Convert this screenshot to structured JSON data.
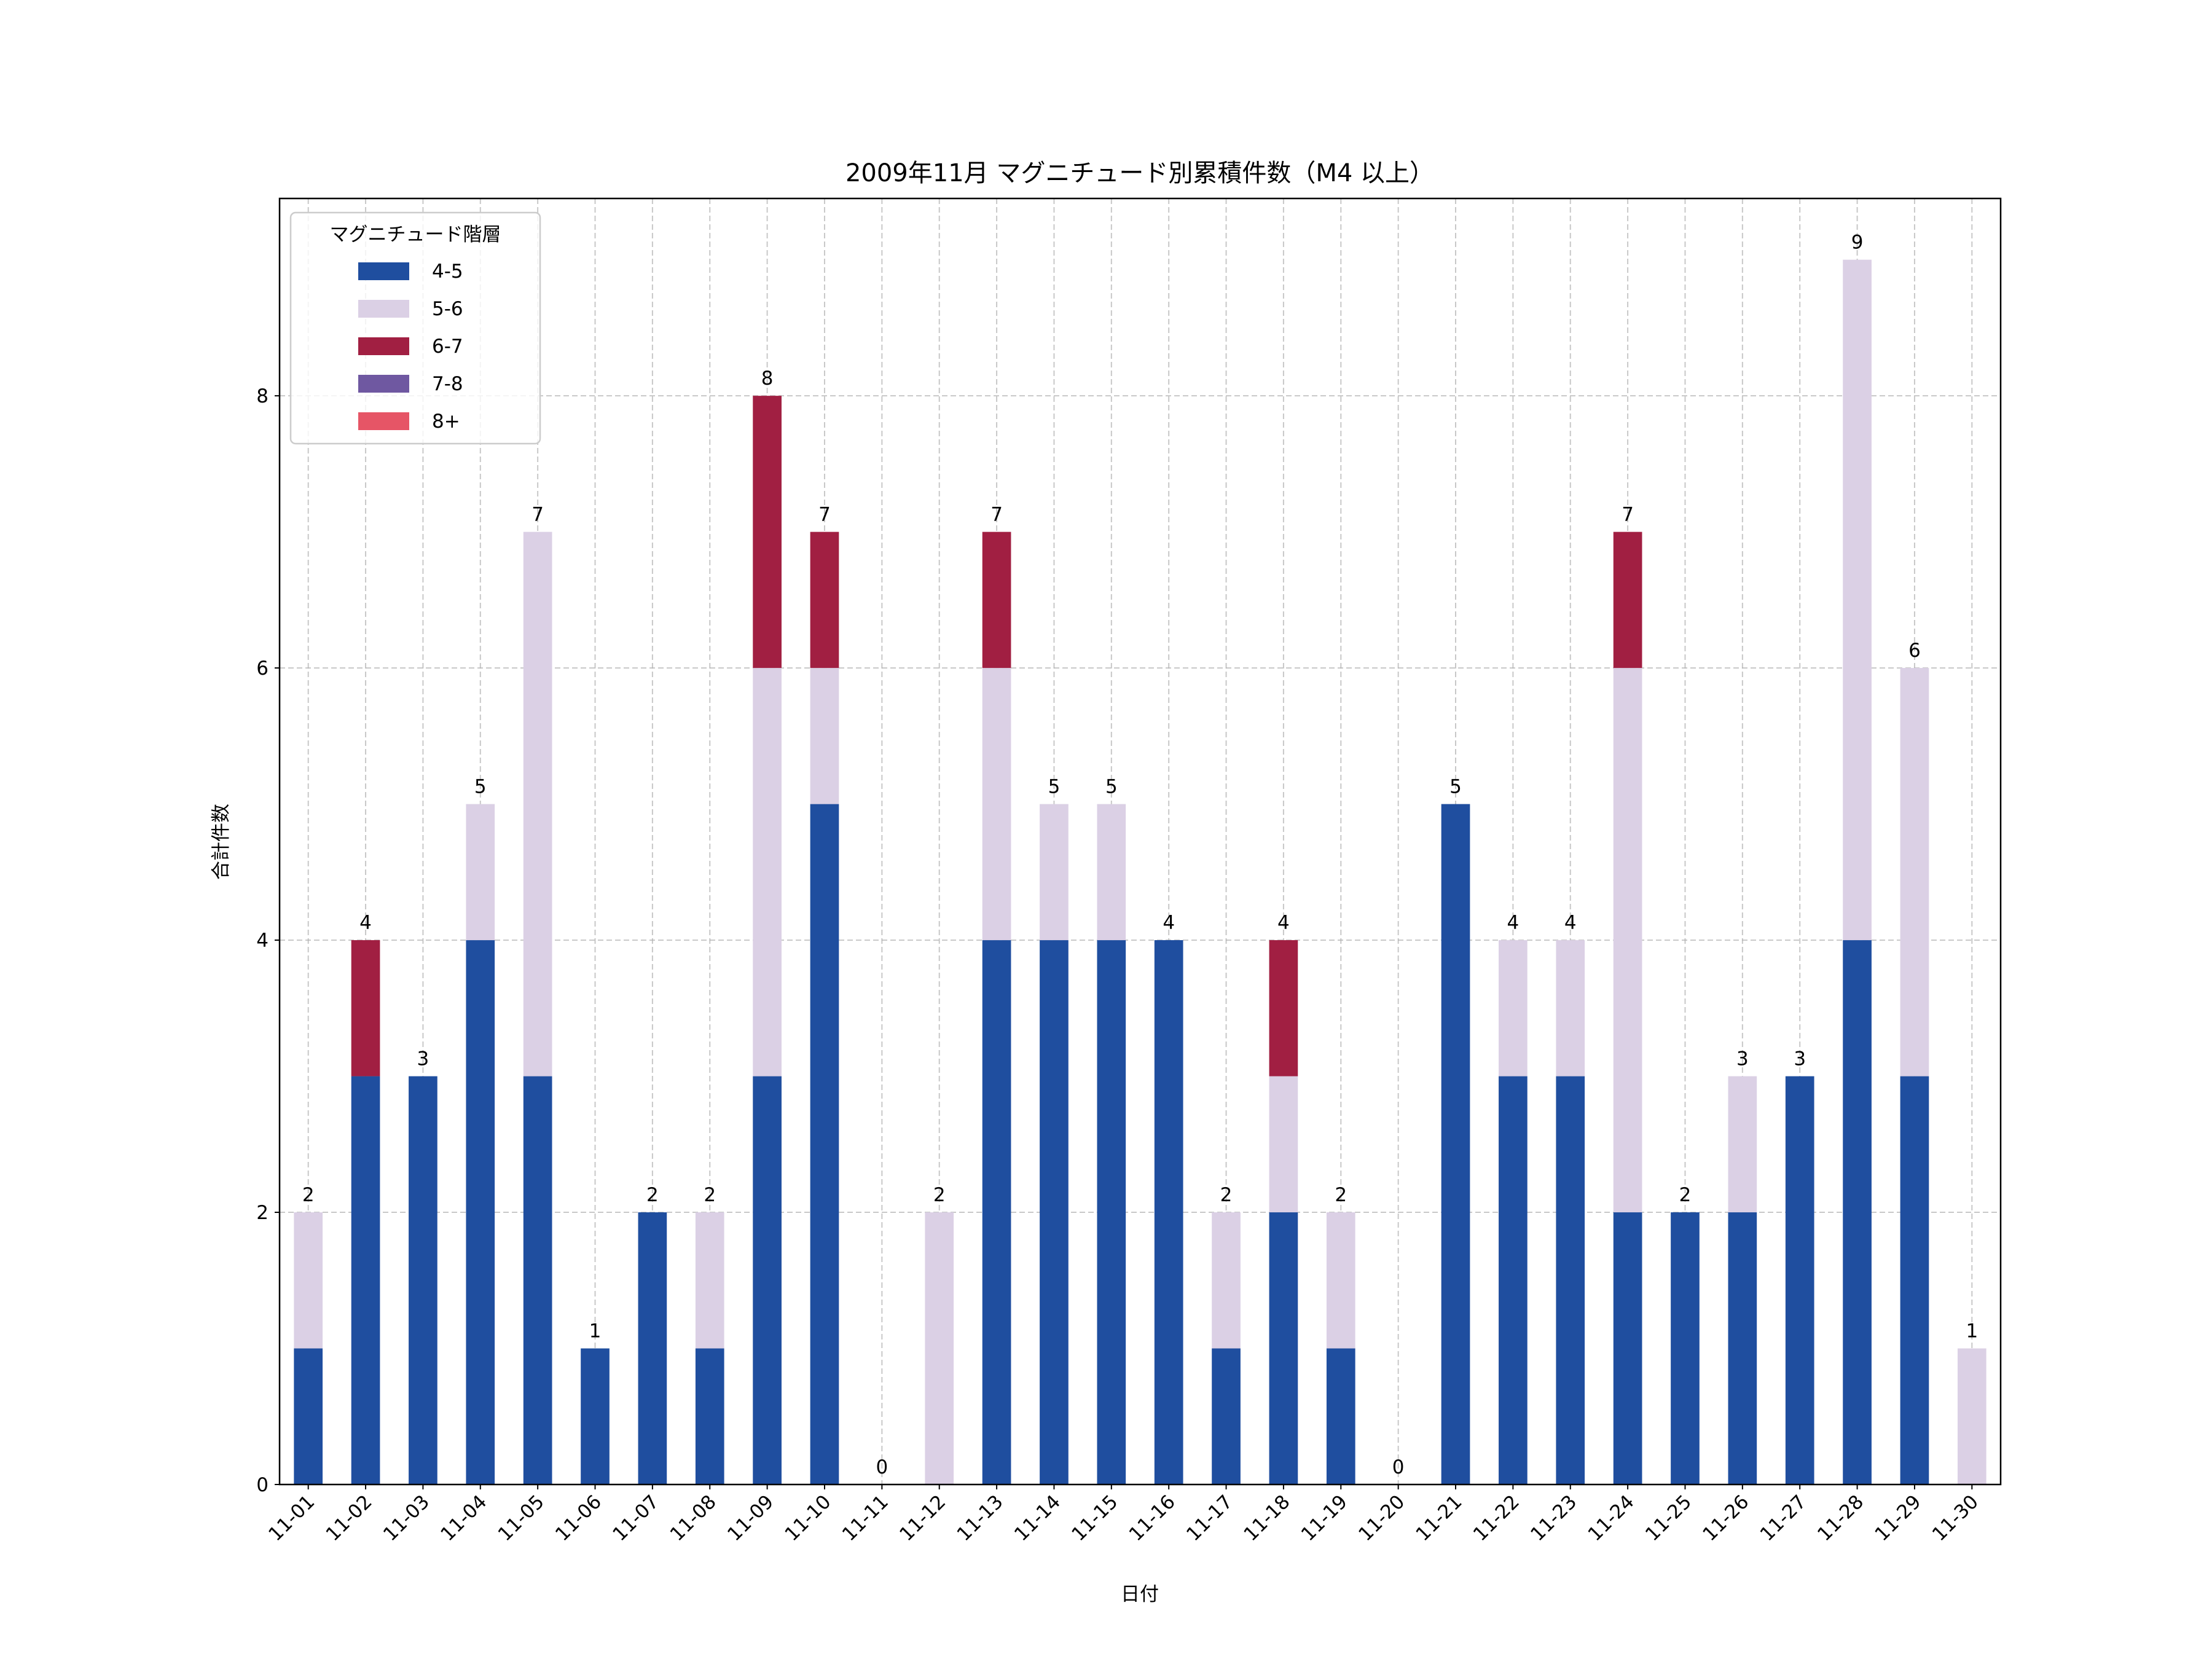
{
  "chart_data": {
    "type": "bar",
    "stacked": true,
    "title": "2009年11月 マグニチュード別累積件数（M4 以上）",
    "xlabel": "日付",
    "ylabel": "合計件数",
    "ylim": [
      0,
      9.45
    ],
    "yticks": [
      0,
      2,
      4,
      6,
      8
    ],
    "grid": true,
    "legend": {
      "title": "マグニチュード階層",
      "placement": "top-left"
    },
    "categories": [
      "11-01",
      "11-02",
      "11-03",
      "11-04",
      "11-05",
      "11-06",
      "11-07",
      "11-08",
      "11-09",
      "11-10",
      "11-11",
      "11-12",
      "11-13",
      "11-14",
      "11-15",
      "11-16",
      "11-17",
      "11-18",
      "11-19",
      "11-20",
      "11-21",
      "11-22",
      "11-23",
      "11-24",
      "11-25",
      "11-26",
      "11-27",
      "11-28",
      "11-29",
      "11-30"
    ],
    "series": [
      {
        "name": "4-5",
        "color": "#1f4e9f",
        "values": [
          1,
          3,
          3,
          4,
          3,
          1,
          2,
          1,
          3,
          5,
          0,
          0,
          4,
          4,
          4,
          4,
          1,
          2,
          1,
          0,
          5,
          3,
          3,
          2,
          2,
          2,
          3,
          4,
          3,
          0
        ]
      },
      {
        "name": "5-6",
        "color": "#dbd0e5",
        "values": [
          1,
          0,
          0,
          1,
          4,
          0,
          0,
          1,
          3,
          1,
          0,
          2,
          2,
          1,
          1,
          0,
          1,
          1,
          1,
          0,
          0,
          1,
          1,
          4,
          0,
          1,
          0,
          5,
          3,
          1
        ]
      },
      {
        "name": "6-7",
        "color": "#a11f42",
        "values": [
          0,
          1,
          0,
          0,
          0,
          0,
          0,
          0,
          2,
          1,
          0,
          0,
          1,
          0,
          0,
          0,
          0,
          1,
          0,
          0,
          0,
          0,
          0,
          1,
          0,
          0,
          0,
          0,
          0,
          0
        ]
      },
      {
        "name": "7-8",
        "color": "#6f58a1",
        "values": [
          0,
          0,
          0,
          0,
          0,
          0,
          0,
          0,
          0,
          0,
          0,
          0,
          0,
          0,
          0,
          0,
          0,
          0,
          0,
          0,
          0,
          0,
          0,
          0,
          0,
          0,
          0,
          0,
          0,
          0
        ]
      },
      {
        "name": "8+",
        "color": "#e65566",
        "values": [
          0,
          0,
          0,
          0,
          0,
          0,
          0,
          0,
          0,
          0,
          0,
          0,
          0,
          0,
          0,
          0,
          0,
          0,
          0,
          0,
          0,
          0,
          0,
          0,
          0,
          0,
          0,
          0,
          0,
          0
        ]
      }
    ],
    "totals": [
      2,
      4,
      3,
      5,
      7,
      1,
      2,
      2,
      8,
      7,
      0,
      2,
      7,
      5,
      5,
      4,
      2,
      4,
      2,
      0,
      5,
      4,
      4,
      7,
      2,
      3,
      3,
      9,
      6,
      1
    ]
  }
}
